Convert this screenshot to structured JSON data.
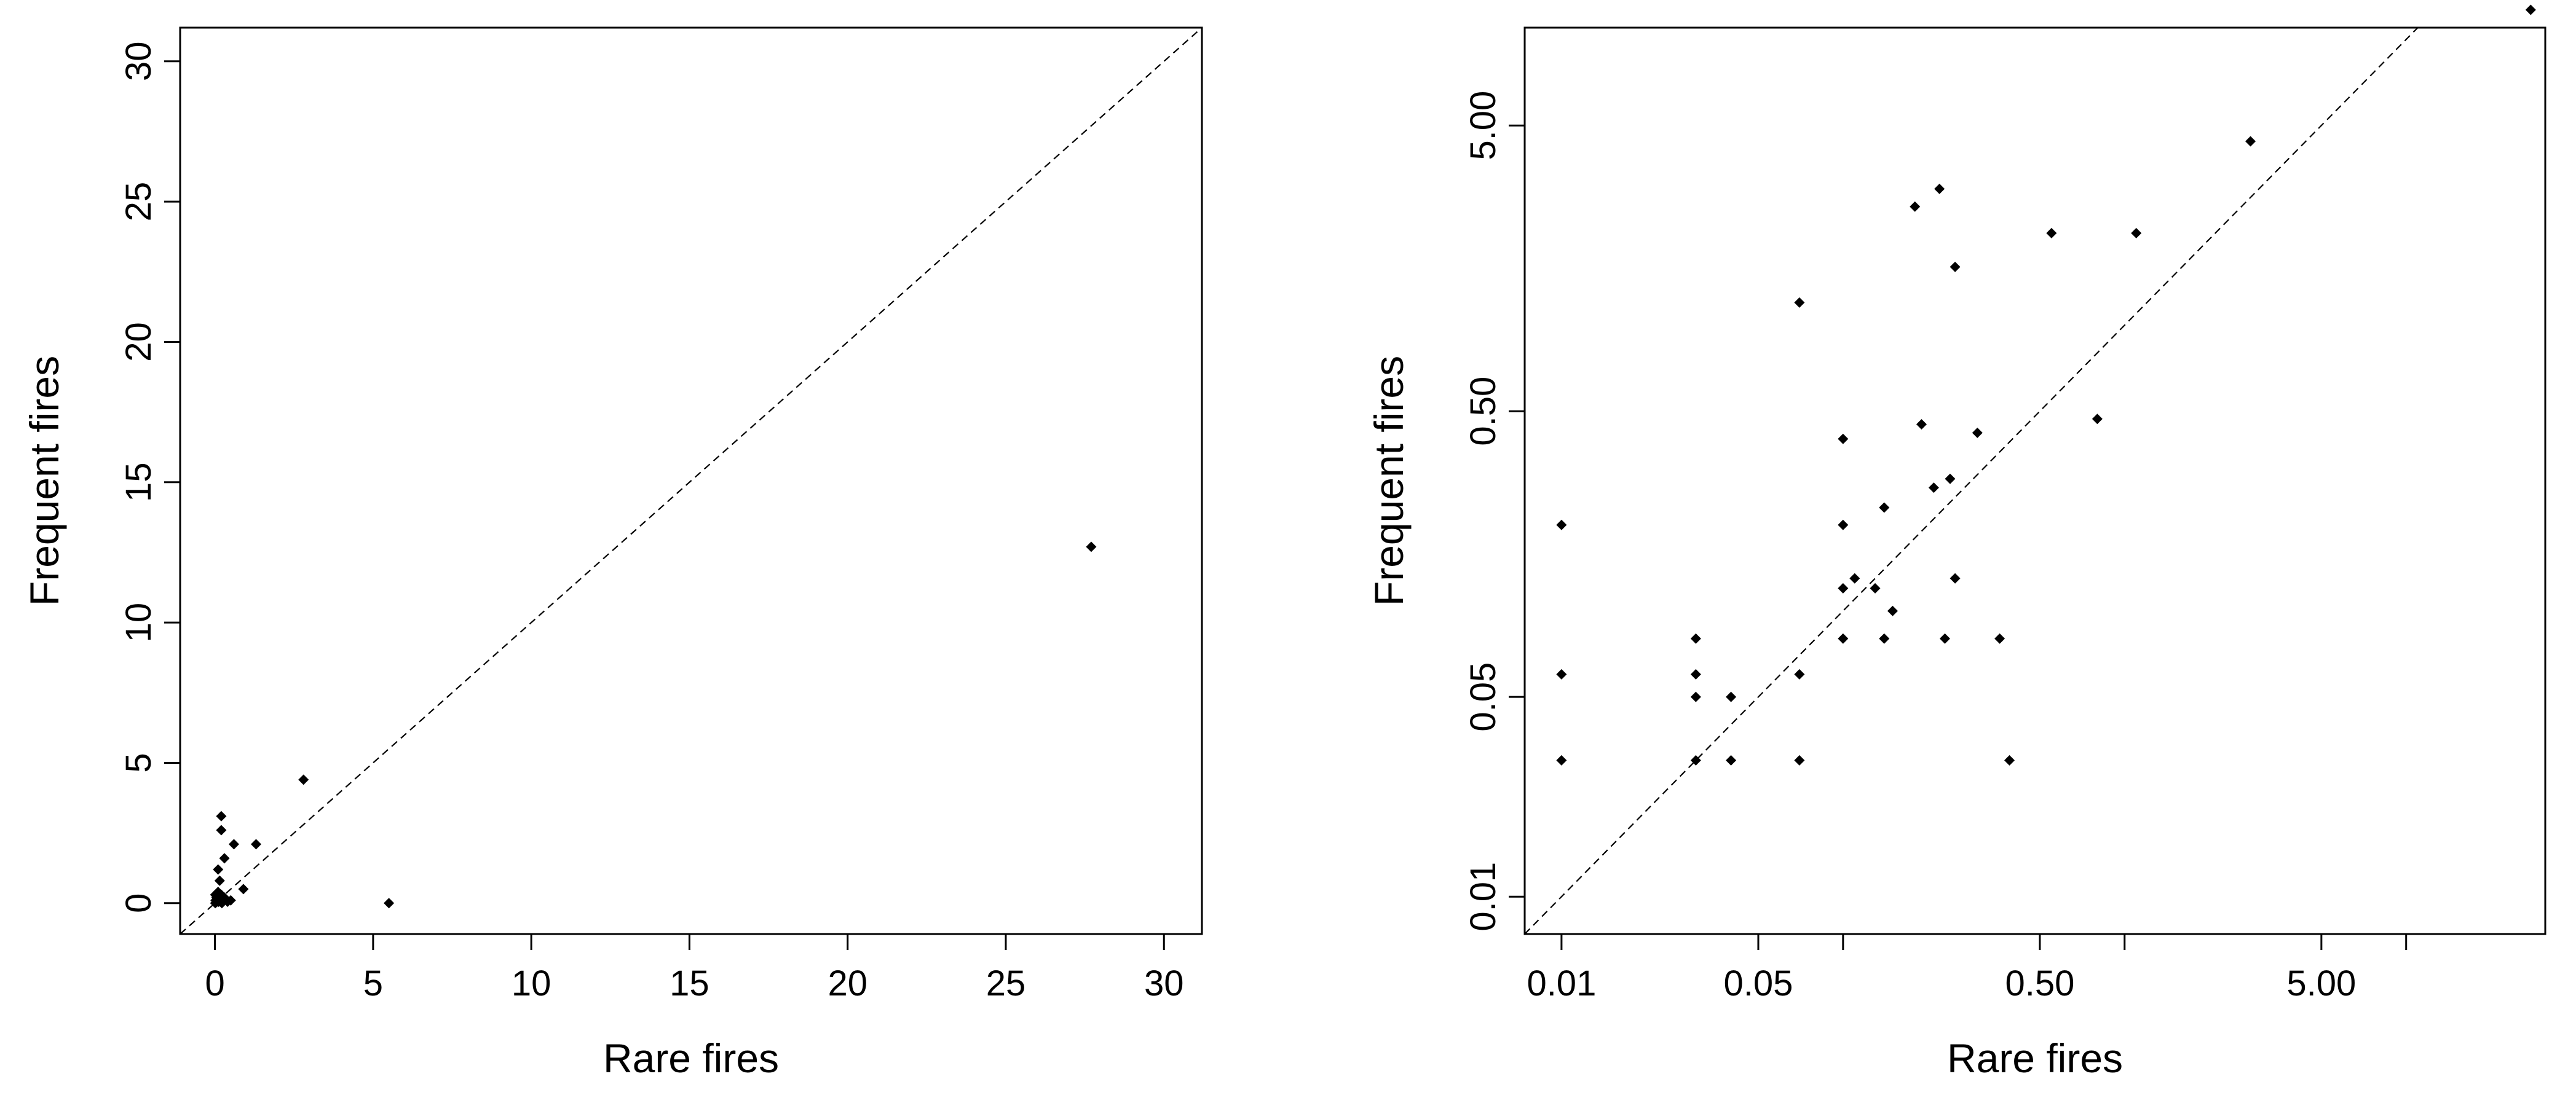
{
  "chart_data": [
    {
      "type": "scatter",
      "title": "",
      "xlabel": "Rare fires",
      "ylabel": "Frequent fires",
      "xlim": [
        -1.1,
        31.2
      ],
      "ylim": [
        -1.1,
        31.2
      ],
      "xscale": "linear",
      "yscale": "linear",
      "xticks": [
        0,
        5,
        10,
        15,
        20,
        25,
        30
      ],
      "xtick_labels": [
        "0",
        "5",
        "10",
        "15",
        "20",
        "25",
        "30"
      ],
      "yticks": [
        0,
        5,
        10,
        15,
        20,
        25,
        30
      ],
      "ytick_labels": [
        "0",
        "5",
        "10",
        "15",
        "20",
        "25",
        "30"
      ],
      "reference_line": "y = x (dashed)",
      "grid": false,
      "legend": "none",
      "series": [
        {
          "points": [
            [
              27.7,
              12.7
            ],
            [
              2.8,
              4.4
            ],
            [
              5.5,
              0.0
            ],
            [
              1.3,
              2.1
            ],
            [
              0.6,
              2.1
            ],
            [
              0.2,
              3.1
            ],
            [
              0.2,
              2.6
            ],
            [
              0.3,
              1.6
            ],
            [
              0.9,
              0.5
            ],
            [
              0.1,
              1.2
            ],
            [
              0.15,
              0.8
            ],
            [
              0.5,
              0.1
            ],
            [
              0.4,
              0.05
            ],
            [
              0.3,
              0.2
            ],
            [
              0.25,
              0.1
            ],
            [
              0.2,
              0.3
            ],
            [
              0.15,
              0.15
            ],
            [
              0.1,
              0.05
            ],
            [
              0.05,
              0.2
            ],
            [
              0.02,
              0.1
            ],
            [
              0.01,
              0.0
            ],
            [
              0.1,
              0.4
            ],
            [
              0.05,
              0.3
            ],
            [
              0.08,
              0.25
            ],
            [
              0.12,
              0.05
            ],
            [
              0.03,
              0.02
            ],
            [
              0.06,
              0.12
            ],
            [
              0.18,
              0.08
            ],
            [
              0.22,
              0.0
            ],
            [
              0.01,
              0.3
            ]
          ]
        }
      ]
    },
    {
      "type": "scatter",
      "title": "",
      "xlabel": "Rare fires",
      "ylabel": "Frequent fires",
      "xlim": [
        0.0074,
        31.2
      ],
      "ylim": [
        0.0074,
        11.0
      ],
      "xscale": "log",
      "yscale": "log",
      "xticks": [
        0.01,
        0.05,
        0.1,
        0.5,
        1,
        5,
        10
      ],
      "xtick_labels": [
        "0.01",
        "0.05",
        "",
        "0.50",
        "",
        "5.00",
        ""
      ],
      "yticks": [
        0.01,
        0.05,
        0.5,
        5
      ],
      "ytick_labels": [
        "0.01",
        "0.05",
        "0.50",
        "5.00"
      ],
      "reference_line": "y = x (dashed)",
      "grid": false,
      "legend": "none",
      "series": [
        {
          "points": [
            [
              0.01,
              0.2
            ],
            [
              0.01,
              0.06
            ],
            [
              0.01,
              0.03
            ],
            [
              0.03,
              0.08
            ],
            [
              0.03,
              0.06
            ],
            [
              0.03,
              0.05
            ],
            [
              0.03,
              0.03
            ],
            [
              0.04,
              0.05
            ],
            [
              0.04,
              0.03
            ],
            [
              0.07,
              1.2
            ],
            [
              0.07,
              0.06
            ],
            [
              0.07,
              0.03
            ],
            [
              0.1,
              0.4
            ],
            [
              0.1,
              0.2
            ],
            [
              0.1,
              0.12
            ],
            [
              0.1,
              0.08
            ],
            [
              0.11,
              0.13
            ],
            [
              0.13,
              0.12
            ],
            [
              0.14,
              0.23
            ],
            [
              0.14,
              0.08
            ],
            [
              0.15,
              0.1
            ],
            [
              0.18,
              2.6
            ],
            [
              0.19,
              0.45
            ],
            [
              0.21,
              0.27
            ],
            [
              0.22,
              3.0
            ],
            [
              0.23,
              0.08
            ],
            [
              0.24,
              0.29
            ],
            [
              0.25,
              1.6
            ],
            [
              0.25,
              0.13
            ],
            [
              0.3,
              0.42
            ],
            [
              0.36,
              0.08
            ],
            [
              0.39,
              0.03
            ],
            [
              0.55,
              2.1
            ],
            [
              0.8,
              0.47
            ],
            [
              1.1,
              2.1
            ],
            [
              2.8,
              4.4
            ],
            [
              27.7,
              12.7
            ]
          ]
        }
      ]
    }
  ]
}
